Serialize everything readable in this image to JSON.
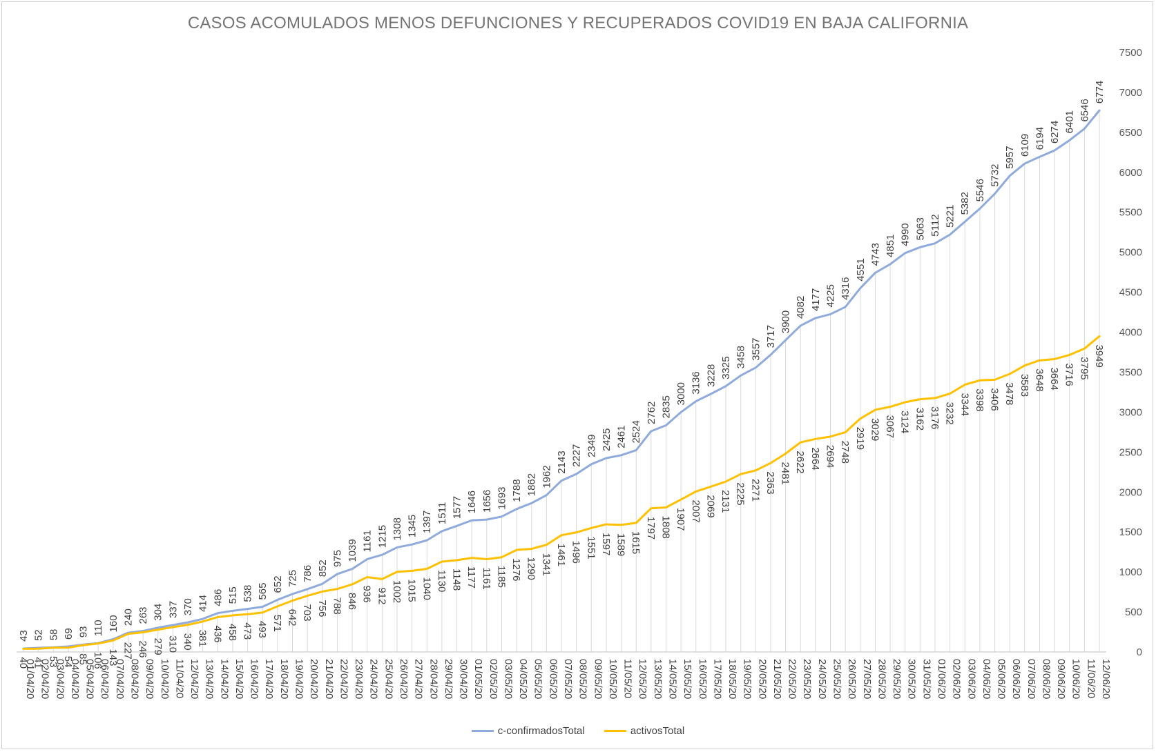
{
  "chart_data": {
    "type": "line",
    "title": "CASOS ACOMULADOS  MENOS DEFUNCIONES  Y RECUPERADOS  COVID19 EN BAJA CALIFORNIA",
    "xlabel": "",
    "ylabel": "",
    "ylim": [
      0,
      7500
    ],
    "yticks": [
      "0",
      "500",
      "1000",
      "1500",
      "2000",
      "2500",
      "3000",
      "3500",
      "4000",
      "4500",
      "5000",
      "5500",
      "6000",
      "6500",
      "7000",
      "7500"
    ],
    "grid": "vertical drop lines",
    "legend_position": "bottom",
    "x": [
      "01/04/20",
      "02/04/20",
      "03/04/20",
      "04/04/20",
      "05/04/20",
      "06/04/20",
      "07/04/20",
      "08/04/20",
      "09/04/20",
      "10/04/20",
      "11/04/20",
      "12/04/20",
      "13/04/20",
      "14/04/20",
      "15/04/20",
      "16/04/20",
      "17/04/20",
      "18/04/20",
      "19/04/20",
      "20/04/20",
      "21/04/20",
      "22/04/20",
      "23/04/20",
      "24/04/20",
      "25/04/20",
      "26/04/20",
      "27/04/20",
      "28/04/20",
      "29/04/20",
      "30/04/20",
      "01/05/20",
      "02/05/20",
      "03/05/20",
      "04/05/20",
      "05/05/20",
      "06/05/20",
      "07/05/20",
      "08/05/20",
      "09/05/20",
      "10/05/20",
      "11/05/20",
      "12/05/20",
      "13/05/20",
      "14/05/20",
      "15/05/20",
      "16/05/20",
      "17/05/20",
      "18/05/20",
      "19/05/20",
      "20/05/20",
      "21/05/20",
      "22/05/20",
      "23/05/20",
      "24/05/20",
      "25/05/20",
      "26/05/20",
      "27/05/20",
      "28/05/20",
      "29/05/20",
      "30/05/20",
      "31/05/20",
      "01/06/20",
      "02/06/20",
      "03/06/20",
      "04/06/20",
      "05/06/20",
      "06/06/20",
      "07/06/20",
      "08/06/20",
      "09/06/20",
      "10/06/20",
      "11/06/20",
      "12/06/20"
    ],
    "series": [
      {
        "name": "c-confirmadosTotal",
        "color": "#8faadc",
        "values": [
          43,
          52,
          58,
          69,
          93,
          110,
          160,
          240,
          263,
          304,
          337,
          370,
          414,
          486,
          515,
          538,
          565,
          652,
          725,
          786,
          852,
          975,
          1039,
          1161,
          1215,
          1308,
          1345,
          1397,
          1511,
          1577,
          1646,
          1656,
          1693,
          1788,
          1862,
          1962,
          2143,
          2227,
          2349,
          2425,
          2461,
          2524,
          2762,
          2835,
          3000,
          3136,
          3228,
          3325,
          3458,
          3557,
          3717,
          3900,
          4082,
          4177,
          4225,
          4316,
          4551,
          4743,
          4851,
          4990,
          5063,
          5112,
          5221,
          5382,
          5546,
          5732,
          5957,
          6109,
          6194,
          6274,
          6401,
          6546,
          6774
        ]
      },
      {
        "name": "activosTotal",
        "color": "#ffc000",
        "values": [
          40,
          41,
          53,
          54,
          85,
          106,
          143,
          227,
          246,
          279,
          310,
          340,
          381,
          436,
          458,
          473,
          493,
          571,
          642,
          703,
          756,
          788,
          846,
          936,
          912,
          1002,
          1015,
          1040,
          1130,
          1148,
          1177,
          1161,
          1185,
          1276,
          1290,
          1341,
          1461,
          1496,
          1551,
          1597,
          1589,
          1615,
          1797,
          1808,
          1907,
          2007,
          2069,
          2131,
          2225,
          2271,
          2363,
          2481,
          2622,
          2664,
          2694,
          2748,
          2919,
          3029,
          3067,
          3124,
          3162,
          3176,
          3232,
          3344,
          3398,
          3406,
          3478,
          3583,
          3648,
          3664,
          3716,
          3795,
          3949
        ]
      }
    ]
  }
}
